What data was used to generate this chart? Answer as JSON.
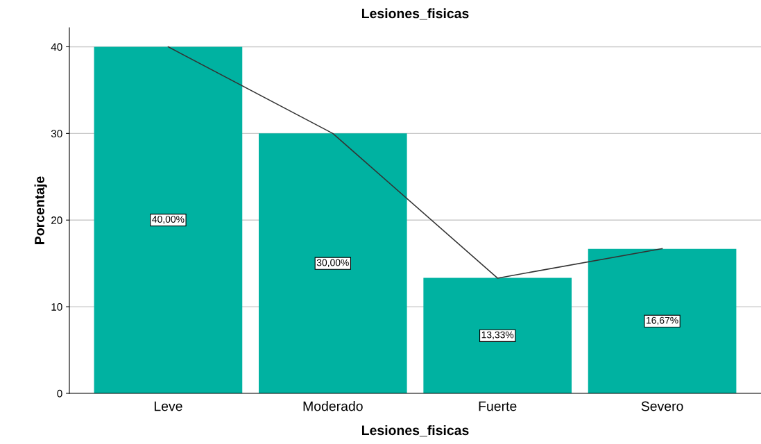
{
  "chart_data": {
    "type": "bar",
    "title": "Lesiones_fisicas",
    "xlabel": "Lesiones_fisicas",
    "ylabel": "Porcentaje",
    "categories": [
      "Leve",
      "Moderado",
      "Fuerte",
      "Severo"
    ],
    "series": [
      {
        "color": "#00b2a1",
        "values": [
          40,
          30,
          13.33,
          16.67
        ],
        "value_labels": [
          "40,00%",
          "30,00%",
          "13,33%",
          "16,67%"
        ]
      },
      {
        "type": "line",
        "color": "#333333",
        "values": [
          40,
          30,
          13.3,
          16.7
        ]
      }
    ],
    "ylim": [
      0,
      42.2
    ],
    "yticks": [
      0,
      10,
      20,
      30,
      40
    ],
    "grid": "y"
  }
}
